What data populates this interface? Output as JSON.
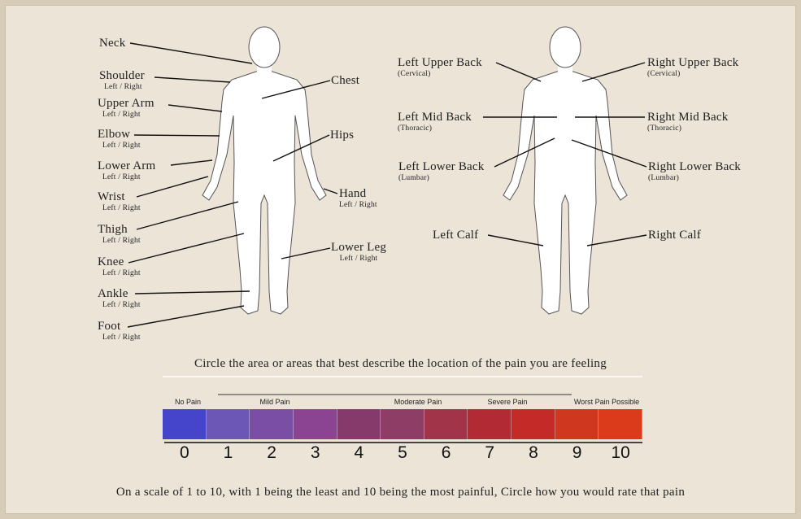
{
  "front_labels": [
    {
      "name": "Neck",
      "sub": ""
    },
    {
      "name": "Shoulder",
      "sub": "Left / Right"
    },
    {
      "name": "Upper Arm",
      "sub": "Left / Right"
    },
    {
      "name": "Elbow",
      "sub": "Left / Right"
    },
    {
      "name": "Lower Arm",
      "sub": "Left / Right"
    },
    {
      "name": "Wrist",
      "sub": "Left / Right"
    },
    {
      "name": "Thigh",
      "sub": "Left / Right"
    },
    {
      "name": "Knee",
      "sub": "Left / Right"
    },
    {
      "name": "Ankle",
      "sub": "Left / Right"
    },
    {
      "name": "Foot",
      "sub": "Left / Right"
    },
    {
      "name": "Chest",
      "sub": ""
    },
    {
      "name": "Hips",
      "sub": ""
    },
    {
      "name": "Hand",
      "sub": "Left / Right"
    },
    {
      "name": "Lower Leg",
      "sub": "Left / Right"
    }
  ],
  "back_labels": [
    {
      "name": "Left Upper Back",
      "sub": "(Cervical)"
    },
    {
      "name": "Right Upper Back",
      "sub": "(Cervical)"
    },
    {
      "name": "Left Mid Back",
      "sub": "(Thoracic)"
    },
    {
      "name": "Right Mid Back",
      "sub": "(Thoracic)"
    },
    {
      "name": "Left Lower Back",
      "sub": "(Lumbar)"
    },
    {
      "name": "Right Lower Back",
      "sub": "(Lumbar)"
    },
    {
      "name": "Left Calf",
      "sub": ""
    },
    {
      "name": "Right Calf",
      "sub": ""
    }
  ],
  "instruction_location": "Circle the area or areas that best describe the location of the pain you are feeling",
  "scale": {
    "headings": [
      "No Pain",
      "Mild Pain",
      "Moderate Pain",
      "Severe Pain",
      "Worst Pain Possible"
    ],
    "numbers": [
      "0",
      "1",
      "2",
      "3",
      "4",
      "5",
      "6",
      "7",
      "8",
      "9",
      "10"
    ],
    "colors": [
      "#4545cc",
      "#6c56b6",
      "#7a4ea5",
      "#8a4491",
      "#853a6b",
      "#8e3d66",
      "#a2344a",
      "#b12a34",
      "#c32a28",
      "#cf371f",
      "#db3b1b"
    ]
  },
  "instruction_rating": "On a scale of 1 to 10, with 1 being the least and 10 being the most painful, Circle how you would rate that pain"
}
